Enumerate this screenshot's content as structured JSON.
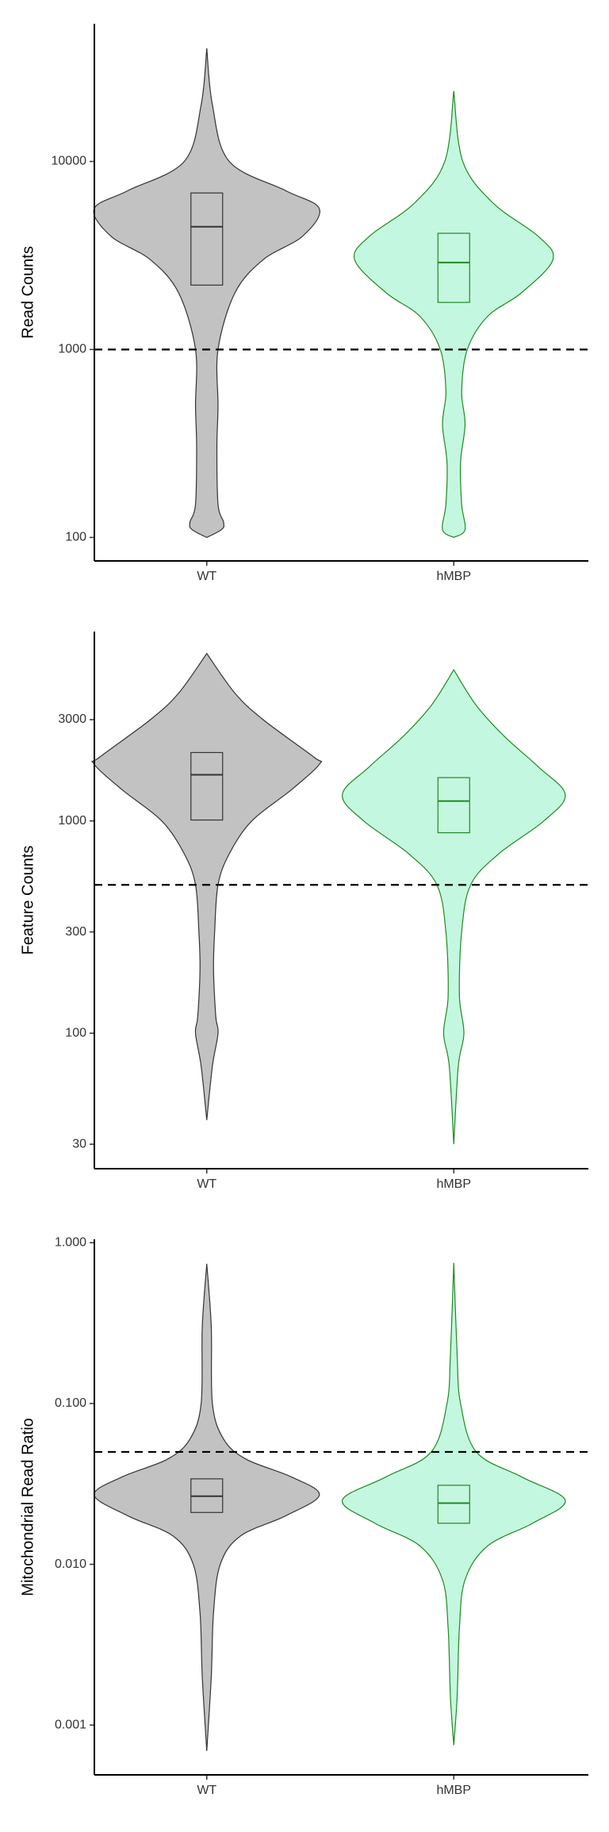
{
  "chart_data": [
    {
      "type": "violin",
      "ylabel": "Read Counts",
      "categories": [
        "WT",
        "hMBP"
      ],
      "log_y": true,
      "ylim": [
        75,
        54000
      ],
      "yticks": [
        100,
        1000,
        10000
      ],
      "hline": 1000,
      "violins": [
        {
          "color": "#c2c2c2",
          "edge": "#333333",
          "q1": 2200,
          "median": 4500,
          "q3": 6800,
          "violin_y": [
            40000,
            20000,
            10000,
            7000,
            5600,
            4000,
            3000,
            2000,
            1000,
            500,
            300,
            150,
            120,
            110,
            100
          ],
          "violin_width": [
            0,
            0.05,
            0.2,
            0.7,
            1,
            0.85,
            0.5,
            0.25,
            0.1,
            0.1,
            0.09,
            0.1,
            0.15,
            0.13,
            0
          ]
        },
        {
          "color": "#c4f7e0",
          "edge": "#1f8a1f",
          "q1": 1780,
          "median": 2900,
          "q3": 4150,
          "violin_y": [
            23700,
            10000,
            6000,
            4000,
            3000,
            2000,
            1500,
            1000,
            600,
            400,
            250,
            150,
            110,
            100
          ],
          "violin_width": [
            0,
            0.08,
            0.35,
            0.75,
            0.88,
            0.6,
            0.3,
            0.12,
            0.07,
            0.1,
            0.06,
            0.07,
            0.1,
            0
          ]
        }
      ]
    },
    {
      "type": "violin",
      "ylabel": "Feature Counts",
      "categories": [
        "WT",
        "hMBP"
      ],
      "log_y": true,
      "ylim": [
        23,
        7800
      ],
      "yticks": [
        30,
        100,
        300,
        1000,
        3000
      ],
      "hline": 500,
      "violins": [
        {
          "color": "#c2c2c2",
          "edge": "#333333",
          "q1": 1010,
          "median": 1650,
          "q3": 2100,
          "violin_y": [
            6150,
            4000,
            3000,
            2000,
            1850,
            1400,
            1000,
            700,
            500,
            300,
            200,
            120,
            100,
            70,
            39
          ],
          "violin_width": [
            0,
            0.25,
            0.5,
            0.95,
            1,
            0.75,
            0.4,
            0.2,
            0.1,
            0.07,
            0.06,
            0.08,
            0.1,
            0.05,
            0
          ]
        },
        {
          "color": "#c4f7e0",
          "edge": "#1f8a1f",
          "q1": 880,
          "median": 1240,
          "q3": 1600,
          "violin_y": [
            5150,
            3500,
            2500,
            1800,
            1330,
            1000,
            700,
            500,
            300,
            150,
            100,
            70,
            30
          ],
          "violin_width": [
            0,
            0.2,
            0.45,
            0.75,
            0.99,
            0.8,
            0.4,
            0.15,
            0.07,
            0.05,
            0.09,
            0.04,
            0
          ]
        }
      ]
    },
    {
      "type": "violin",
      "ylabel": "Mitochondrial Read Ratio",
      "categories": [
        "WT",
        "hMBP"
      ],
      "log_y": true,
      "ylim": [
        0.00049,
        1.05
      ],
      "yticks": [
        {
          "value": 0.001,
          "label": "0.001"
        },
        {
          "value": 0.01,
          "label": "0.010"
        },
        {
          "value": 0.1,
          "label": "0.100"
        },
        {
          "value": 1,
          "label": "1.000"
        }
      ],
      "hline": 0.05,
      "violins": [
        {
          "color": "#c2c2c2",
          "edge": "#333333",
          "q1": 0.021,
          "median": 0.0265,
          "q3": 0.034,
          "violin_y": [
            0.74,
            0.3,
            0.1,
            0.06,
            0.045,
            0.035,
            0.027,
            0.02,
            0.015,
            0.01,
            0.005,
            0.002,
            0.00069
          ],
          "violin_width": [
            0,
            0.04,
            0.05,
            0.15,
            0.35,
            0.75,
            1,
            0.7,
            0.3,
            0.12,
            0.06,
            0.04,
            0
          ]
        },
        {
          "color": "#c4f7e0",
          "edge": "#1f8a1f",
          "q1": 0.018,
          "median": 0.024,
          "q3": 0.031,
          "violin_y": [
            0.75,
            0.2,
            0.1,
            0.05,
            0.035,
            0.025,
            0.018,
            0.013,
            0.008,
            0.004,
            0.0015,
            0.00075
          ],
          "violin_width": [
            0,
            0.03,
            0.06,
            0.2,
            0.6,
            0.99,
            0.7,
            0.3,
            0.1,
            0.05,
            0.03,
            0
          ]
        }
      ]
    }
  ]
}
